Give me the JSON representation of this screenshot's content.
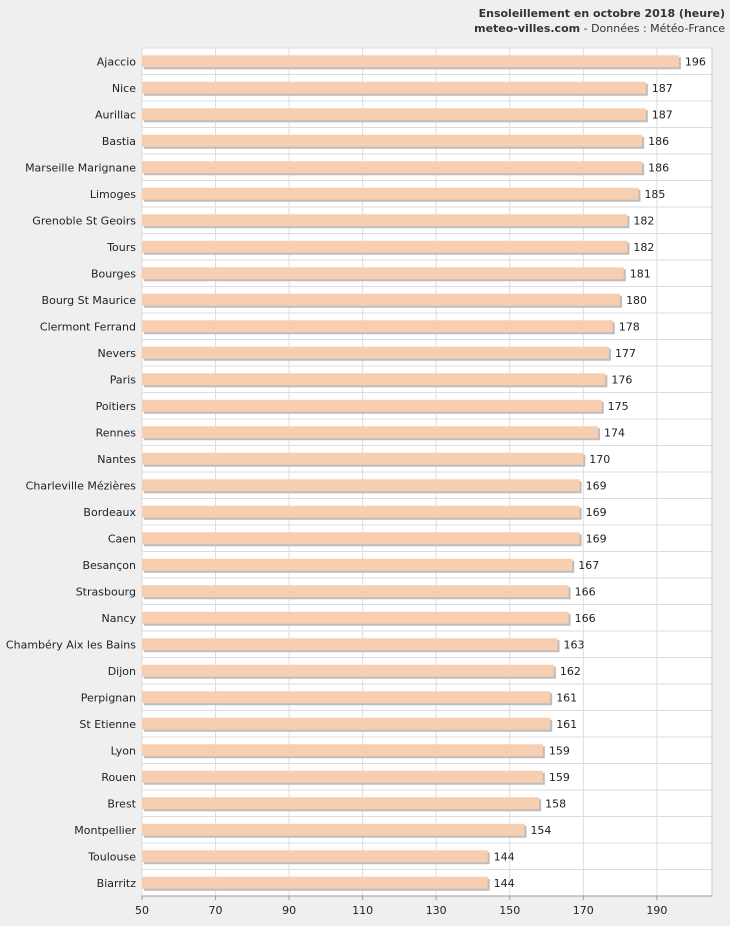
{
  "header": {
    "title": "Ensoleillement en octobre 2018 (heure)",
    "site": "meteo-villes.com",
    "source_rest": " - Données : Météo-France"
  },
  "colors": {
    "bar_fill": "#f7cfb0",
    "bar_shadow": "#bdbdbd",
    "plot_bg": "#ffffff",
    "grid": "#dddddd",
    "page_bg": "#efefef"
  },
  "chart_data": {
    "type": "bar",
    "orientation": "horizontal",
    "title": "Ensoleillement en octobre 2018 (heure)",
    "categories": [
      "Ajaccio",
      "Nice",
      "Aurillac",
      "Bastia",
      "Marseille Marignane",
      "Limoges",
      "Grenoble St Geoirs",
      "Tours",
      "Bourges",
      "Bourg St Maurice",
      "Clermont Ferrand",
      "Nevers",
      "Paris",
      "Poitiers",
      "Rennes",
      "Nantes",
      "Charleville Mézières",
      "Bordeaux",
      "Caen",
      "Besançon",
      "Strasbourg",
      "Nancy",
      "Chambéry Aix les Bains",
      "Dijon",
      "Perpignan",
      "St Etienne",
      "Lyon",
      "Rouen",
      "Brest",
      "Montpellier",
      "Toulouse",
      "Biarritz"
    ],
    "values": [
      196,
      187,
      187,
      186,
      186,
      185,
      182,
      182,
      181,
      180,
      178,
      177,
      176,
      175,
      174,
      170,
      169,
      169,
      169,
      167,
      166,
      166,
      163,
      162,
      161,
      161,
      159,
      159,
      158,
      154,
      144,
      144
    ],
    "xlim": [
      50,
      205
    ],
    "xticks": [
      50,
      70,
      90,
      110,
      130,
      150,
      170,
      190
    ],
    "grid": true
  }
}
